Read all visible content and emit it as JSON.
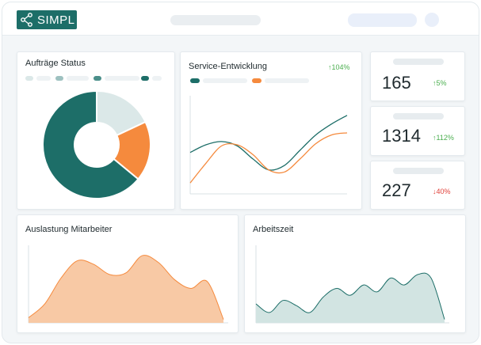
{
  "app": {
    "logo_text": "SIMPL",
    "colors": {
      "brand": "#1d6e68",
      "orange": "#f58a3d",
      "light_teal": "#dbe8e8",
      "peach": "#f8c9a5",
      "mint": "#d2e4e2",
      "up": "#4caf50",
      "down": "#e0413a"
    }
  },
  "auftraege": {
    "title": "Aufträge Status",
    "chart_data": {
      "type": "pie",
      "title": "Aufträge Status",
      "slices": [
        {
          "value": 18,
          "color": "#dbe8e8"
        },
        {
          "value": 18,
          "color": "#f58a3d"
        },
        {
          "value": 64,
          "color": "#1d6e68"
        }
      ],
      "donut": true
    }
  },
  "service": {
    "title": "Service-Entwicklung",
    "change": "↑104%",
    "chart_data": {
      "type": "line",
      "title": "Service-Entwicklung",
      "x": [
        0,
        1,
        2,
        3,
        4,
        5,
        6,
        7,
        8,
        9,
        10
      ],
      "series": [
        {
          "color": "#1d6e68",
          "values": [
            38,
            45,
            48,
            44,
            32,
            22,
            26,
            40,
            54,
            64,
            72
          ]
        },
        {
          "color": "#f58a3d",
          "values": [
            10,
            28,
            44,
            45,
            36,
            22,
            20,
            32,
            46,
            54,
            56
          ]
        }
      ],
      "ylim": [
        0,
        90
      ],
      "grid": false
    }
  },
  "kpis": [
    {
      "value": "165",
      "change": "↑5%",
      "trend": "up"
    },
    {
      "value": "1314",
      "change": "↑112%",
      "trend": "up"
    },
    {
      "value": "227",
      "change": "↓40%",
      "trend": "down"
    }
  ],
  "auslastung": {
    "title": "Auslastung Mitarbeiter",
    "chart_data": {
      "type": "area",
      "title": "Auslastung Mitarbeiter",
      "x": [
        0,
        1,
        2,
        3,
        4,
        5,
        6,
        7,
        8,
        9,
        10,
        11,
        12
      ],
      "values": [
        6,
        22,
        52,
        72,
        68,
        56,
        58,
        78,
        70,
        50,
        40,
        48,
        4
      ],
      "color": "#f8c9a5",
      "stroke": "#f58a3d",
      "ylim": [
        0,
        90
      ]
    }
  },
  "arbeitszeit": {
    "title": "Arbeitszeit",
    "chart_data": {
      "type": "area",
      "title": "Arbeitszeit",
      "x": [
        0,
        1,
        2,
        3,
        4,
        5,
        6,
        7,
        8,
        9,
        10,
        11,
        12,
        13,
        14
      ],
      "values": [
        22,
        12,
        26,
        20,
        12,
        30,
        40,
        32,
        44,
        36,
        52,
        44,
        56,
        52,
        4
      ],
      "color": "#d2e4e2",
      "stroke": "#1d6e68",
      "ylim": [
        0,
        90
      ]
    }
  }
}
